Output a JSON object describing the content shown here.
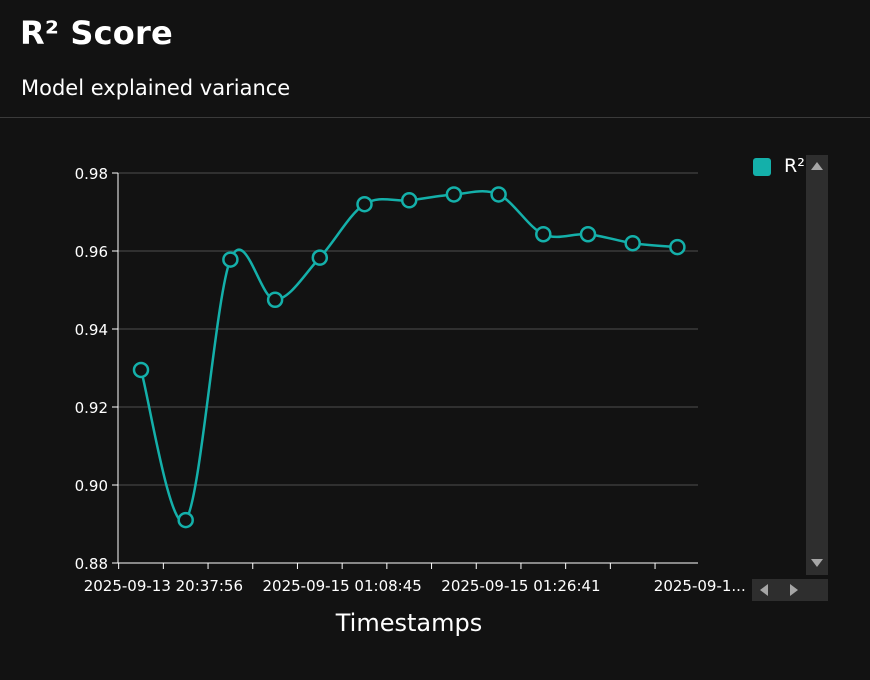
{
  "header": {
    "title": "R² Score",
    "subtitle": "Model explained variance"
  },
  "legend": {
    "label": "R²"
  },
  "colors": {
    "series": "#14b0aa",
    "grid": "#3b3b3b",
    "axis": "#ffffff",
    "background": "#121212"
  },
  "chart_data": {
    "type": "line",
    "title": "R² Score",
    "subtitle": "Model explained variance",
    "xlabel": "Timestamps",
    "ylabel": "",
    "ylim": [
      0.88,
      0.98
    ],
    "yticks": [
      "0.88",
      "0.90",
      "0.92",
      "0.94",
      "0.96",
      "0.98"
    ],
    "x_tick_labels": [
      {
        "index": 1,
        "label": "2025-09-13 20:37:56"
      },
      {
        "index": 5,
        "label": "2025-09-15 01:08:45"
      },
      {
        "index": 9,
        "label": "2025-09-15 01:26:41"
      },
      {
        "index": 13,
        "label": "2025-09-1..."
      }
    ],
    "grid": true,
    "legend_position": "right",
    "series": [
      {
        "name": "R²",
        "values": [
          0.9295,
          0.891,
          0.9578,
          0.9475,
          0.9583,
          0.972,
          0.973,
          0.9745,
          0.9745,
          0.9643,
          0.9643,
          0.962,
          0.961
        ]
      }
    ]
  }
}
